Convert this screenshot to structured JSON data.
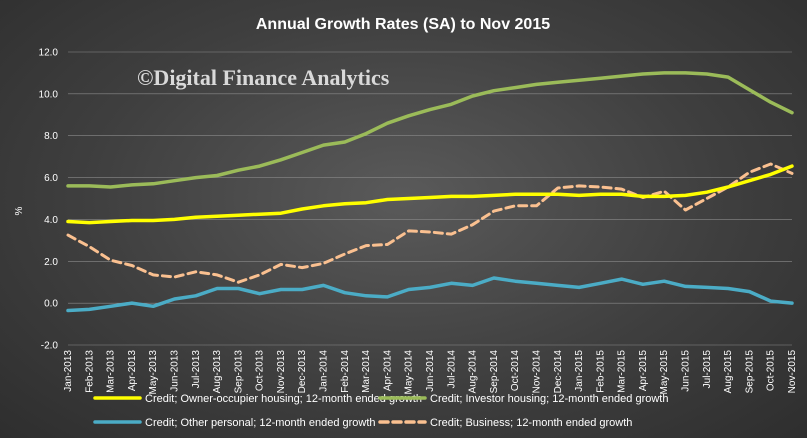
{
  "chart_data": {
    "type": "line",
    "title": "Annual Growth Rates (SA) to Nov 2015",
    "watermark": "©Digital Finance Analytics",
    "ylabel": "%",
    "xlabel": "",
    "ylim": [
      -2.0,
      12.0
    ],
    "y_ticks": [
      "-2.0",
      "0.0",
      "2.0",
      "4.0",
      "6.0",
      "8.0",
      "10.0",
      "12.0"
    ],
    "categories": [
      "Jan-2013",
      "Feb-2013",
      "Mar-2013",
      "Apr-2013",
      "May-2013",
      "Jun-2013",
      "Jul-2013",
      "Aug-2013",
      "Sep-2013",
      "Oct-2013",
      "Nov-2013",
      "Dec-2013",
      "Jan-2014",
      "Feb-2014",
      "Mar-2014",
      "Apr-2014",
      "May-2014",
      "Jun-2014",
      "Jul-2014",
      "Aug-2014",
      "Sep-2014",
      "Oct-2014",
      "Nov-2014",
      "Dec-2014",
      "Jan-2015",
      "Feb-2015",
      "Mar-2015",
      "Apr-2015",
      "May-2015",
      "Jun-2015",
      "Jul-2015",
      "Aug-2015",
      "Sep-2015",
      "Oct-2015",
      "Nov-2015"
    ],
    "grid": true,
    "legend_position": "bottom",
    "series": [
      {
        "name": "Credit; Owner-occupier housing; 12-month ended growth",
        "color": "#ffff00",
        "dashed": false,
        "values": [
          3.9,
          3.85,
          3.9,
          3.95,
          3.95,
          4.0,
          4.1,
          4.15,
          4.2,
          4.25,
          4.3,
          4.5,
          4.65,
          4.75,
          4.8,
          4.95,
          5.0,
          5.05,
          5.1,
          5.1,
          5.15,
          5.2,
          5.2,
          5.2,
          5.15,
          5.2,
          5.2,
          5.1,
          5.1,
          5.15,
          5.3,
          5.55,
          5.85,
          6.15,
          6.55
        ]
      },
      {
        "name": "Credit; Investor housing; 12-month ended growth",
        "color": "#9bbb59",
        "dashed": false,
        "values": [
          5.6,
          5.6,
          5.55,
          5.65,
          5.7,
          5.85,
          6.0,
          6.1,
          6.35,
          6.55,
          6.85,
          7.2,
          7.55,
          7.7,
          8.1,
          8.6,
          8.95,
          9.25,
          9.5,
          9.9,
          10.15,
          10.3,
          10.45,
          10.55,
          10.65,
          10.75,
          10.85,
          10.95,
          11.0,
          11.0,
          10.95,
          10.8,
          10.2,
          9.6,
          9.1
        ]
      },
      {
        "name": "Credit; Other personal; 12-month ended growth",
        "color": "#4bacc6",
        "dashed": false,
        "values": [
          -0.35,
          -0.3,
          -0.15,
          0.0,
          -0.15,
          0.2,
          0.35,
          0.7,
          0.7,
          0.45,
          0.65,
          0.65,
          0.85,
          0.5,
          0.35,
          0.3,
          0.65,
          0.75,
          0.95,
          0.85,
          1.2,
          1.05,
          0.95,
          0.85,
          0.75,
          0.95,
          1.15,
          0.9,
          1.05,
          0.8,
          0.75,
          0.7,
          0.55,
          0.1,
          0.0
        ]
      },
      {
        "name": "Credit; Business; 12-month ended growth",
        "color": "#fac090",
        "dashed": true,
        "values": [
          3.25,
          2.7,
          2.05,
          1.8,
          1.35,
          1.25,
          1.5,
          1.35,
          1.0,
          1.35,
          1.85,
          1.7,
          1.9,
          2.35,
          2.75,
          2.8,
          3.45,
          3.4,
          3.3,
          3.75,
          4.4,
          4.65,
          4.65,
          5.5,
          5.6,
          5.55,
          5.45,
          5.05,
          5.35,
          4.45,
          5.0,
          5.55,
          6.25,
          6.65,
          6.2
        ]
      }
    ]
  }
}
